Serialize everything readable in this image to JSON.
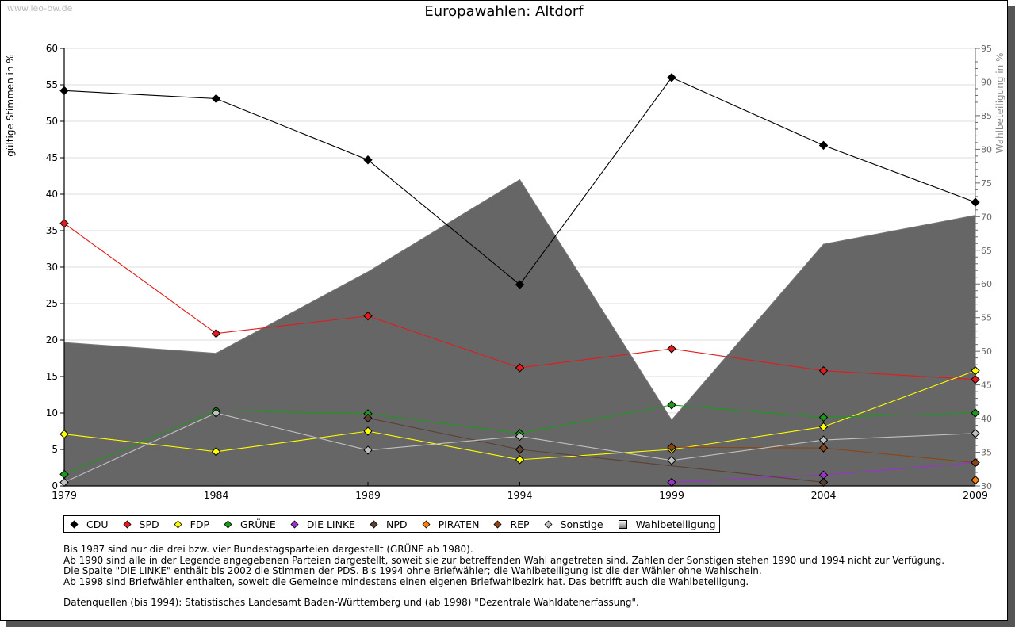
{
  "watermark": "www.leo-bw.de",
  "chart_data": {
    "type": "line",
    "title": "Europawahlen: Altdorf",
    "ylabel": "gültige Stimmen in %",
    "y2label": "Wahlbeteiligung in %",
    "xlabel": "",
    "x": [
      1979,
      1984,
      1989,
      1994,
      1999,
      2004,
      2009
    ],
    "xlim": [
      1979,
      2009
    ],
    "ylim": [
      0,
      60
    ],
    "y2lim": [
      30,
      95
    ],
    "yticks": [
      0,
      5,
      10,
      15,
      20,
      25,
      30,
      35,
      40,
      45,
      50,
      55,
      60
    ],
    "y2ticks": [
      30,
      35,
      40,
      45,
      50,
      55,
      60,
      65,
      70,
      75,
      80,
      85,
      90,
      95
    ],
    "grid": true,
    "legend_position": "bottom",
    "series": [
      {
        "name": "CDU",
        "color": "#000000",
        "axis": "left",
        "values": [
          54.2,
          53.1,
          44.7,
          27.6,
          56.0,
          46.7,
          38.9
        ]
      },
      {
        "name": "SPD",
        "color": "#e41a1c",
        "axis": "left",
        "values": [
          36.0,
          20.9,
          23.3,
          16.2,
          18.8,
          15.8,
          14.6
        ]
      },
      {
        "name": "FDP",
        "color": "#ffff00",
        "axis": "left",
        "values": [
          7.1,
          4.7,
          7.5,
          3.6,
          5.0,
          8.1,
          15.8
        ]
      },
      {
        "name": "GRÜNE",
        "color": "#1a9a1a",
        "axis": "left",
        "values": [
          1.6,
          10.3,
          9.9,
          7.2,
          11.1,
          9.4,
          10.0
        ]
      },
      {
        "name": "DIE LINKE",
        "color": "#9933cc",
        "axis": "left",
        "values": [
          null,
          null,
          null,
          null,
          0.5,
          1.5,
          3.2
        ]
      },
      {
        "name": "NPD",
        "color": "#5c4033",
        "axis": "left",
        "values": [
          null,
          null,
          9.3,
          5.0,
          null,
          0.5,
          null
        ]
      },
      {
        "name": "PIRATEN",
        "color": "#ff8000",
        "axis": "left",
        "values": [
          null,
          null,
          null,
          null,
          null,
          null,
          0.8
        ]
      },
      {
        "name": "REP",
        "color": "#8b4513",
        "axis": "left",
        "values": [
          null,
          null,
          null,
          null,
          5.3,
          5.2,
          3.2
        ]
      },
      {
        "name": "Sonstige",
        "color": "#c0c0c0",
        "axis": "left",
        "values": [
          0.5,
          10.0,
          4.9,
          6.8,
          3.5,
          6.3,
          7.2
        ]
      },
      {
        "name": "Wahlbeteiligung",
        "color": "#888888",
        "axis": "right",
        "kind": "area",
        "values": [
          51.3,
          49.7,
          61.8,
          75.5,
          39.8,
          65.9,
          70.2
        ]
      }
    ]
  },
  "notes": [
    "Bis 1987 sind nur die drei bzw. vier Bundestagsparteien dargestellt (GRÜNE ab 1980).",
    "Ab 1990 sind alle in der Legende angegebenen Parteien dargestellt, soweit sie zur betreffenden Wahl angetreten sind. Zahlen der Sonstigen stehen 1990 und 1994 nicht zur Verfügung.",
    "Die Spalte \"DIE LINKE\" enthält bis 2002 die Stimmen der PDS. Bis 1994 ohne Briefwähler; die Wahlbeteiligung ist die der Wähler ohne Wahlschein.",
    "Ab 1998 sind Briefwähler enthalten, soweit die Gemeinde mindestens einen eigenen Briefwahlbezirk hat. Das betrifft auch die Wahlbeteiligung."
  ],
  "source": "Datenquellen (bis 1994): Statistisches Landesamt Baden-Württemberg und (ab 1998) \"Dezentrale Wahldatenerfassung\"."
}
